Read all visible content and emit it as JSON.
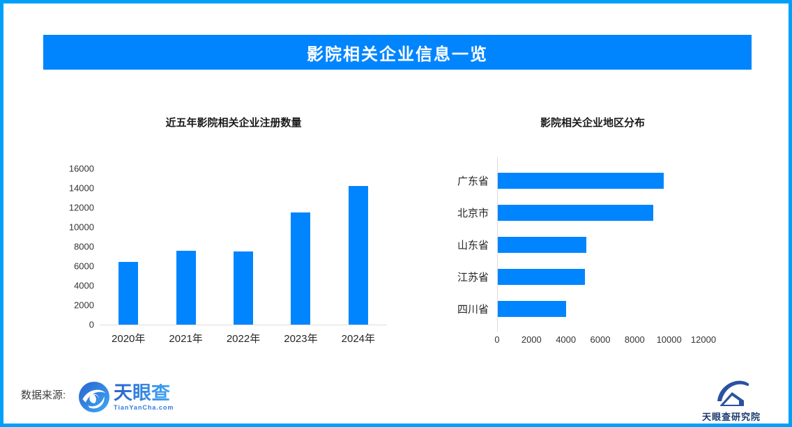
{
  "page": {
    "border_color": "#00A0FA",
    "banner_color": "#0085FF",
    "title": "影院相关企业信息一览"
  },
  "chart_data": [
    {
      "type": "bar",
      "title": "近五年影院相关企业注册数量",
      "categories": [
        "2020年",
        "2021年",
        "2022年",
        "2023年",
        "2024年"
      ],
      "values": [
        6400,
        7600,
        7500,
        11500,
        14200
      ],
      "ylim": [
        0,
        16000
      ],
      "yticks": [
        0,
        2000,
        4000,
        6000,
        8000,
        10000,
        12000,
        14000,
        16000
      ],
      "bar_color": "#0085FF",
      "grid": false,
      "legend": "none"
    },
    {
      "type": "bar-horizontal",
      "title": "影院相关企业地区分布",
      "categories": [
        "广东省",
        "北京市",
        "山东省",
        "江苏省",
        "四川省"
      ],
      "values": [
        9700,
        9100,
        5200,
        5100,
        4000
      ],
      "xlim": [
        0,
        12000
      ],
      "xticks": [
        0,
        2000,
        4000,
        6000,
        8000,
        10000,
        12000
      ],
      "bar_color": "#0085FF",
      "grid": false,
      "legend": "none"
    }
  ],
  "footer": {
    "source_label": "数据来源:",
    "tianyancha_name": "天眼查",
    "tianyancha_domain": "TianYanCha.com",
    "institute_name": "天眼查研究院"
  }
}
